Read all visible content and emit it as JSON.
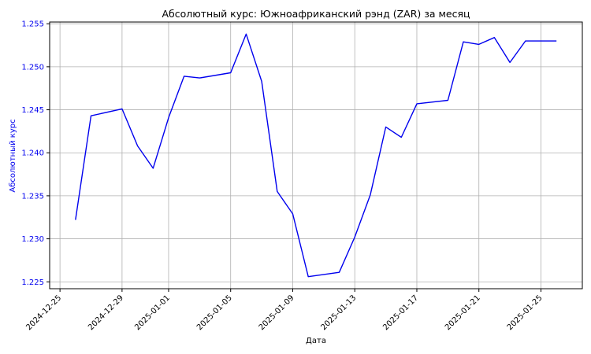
{
  "chart_data": {
    "type": "line",
    "title": "Абсолютный курс: Южноафриканский рэнд (ZAR) за месяц",
    "xlabel": "Дата",
    "ylabel": "Абсолютный курс",
    "x_tick_labels": [
      "2024-12-25",
      "2024-12-29",
      "2025-01-01",
      "2025-01-05",
      "2025-01-09",
      "2025-01-13",
      "2025-01-17",
      "2025-01-21",
      "2025-01-25"
    ],
    "y_tick_labels": [
      "1.225",
      "1.230",
      "1.235",
      "1.240",
      "1.245",
      "1.250",
      "1.255"
    ],
    "ylim": [
      1.2242,
      1.2552
    ],
    "xlim": [
      "2024-12-24T08:00",
      "2025-01-27T16:00"
    ],
    "grid": true,
    "series": [
      {
        "color": "#0000ee",
        "points": [
          {
            "x": "2024-12-26",
            "y": 1.2322
          },
          {
            "x": "2024-12-27",
            "y": 1.2443
          },
          {
            "x": "2024-12-29",
            "y": 1.2451
          },
          {
            "x": "2024-12-30",
            "y": 1.2408
          },
          {
            "x": "2024-12-31",
            "y": 1.2382
          },
          {
            "x": "2025-01-01",
            "y": 1.2441
          },
          {
            "x": "2025-01-02",
            "y": 1.2489
          },
          {
            "x": "2025-01-03",
            "y": 1.2487
          },
          {
            "x": "2025-01-05",
            "y": 1.2493
          },
          {
            "x": "2025-01-06",
            "y": 1.2538
          },
          {
            "x": "2025-01-07",
            "y": 1.2483
          },
          {
            "x": "2025-01-08",
            "y": 1.2355
          },
          {
            "x": "2025-01-09",
            "y": 1.2329
          },
          {
            "x": "2025-01-10",
            "y": 1.2256
          },
          {
            "x": "2025-01-12",
            "y": 1.2261
          },
          {
            "x": "2025-01-13",
            "y": 1.2302
          },
          {
            "x": "2025-01-14",
            "y": 1.2351
          },
          {
            "x": "2025-01-15",
            "y": 1.243
          },
          {
            "x": "2025-01-16",
            "y": 1.2418
          },
          {
            "x": "2025-01-17",
            "y": 1.2457
          },
          {
            "x": "2025-01-19",
            "y": 1.2461
          },
          {
            "x": "2025-01-20",
            "y": 1.2529
          },
          {
            "x": "2025-01-21",
            "y": 1.2526
          },
          {
            "x": "2025-01-22",
            "y": 1.2534
          },
          {
            "x": "2025-01-23",
            "y": 1.2505
          },
          {
            "x": "2025-01-24",
            "y": 1.253
          },
          {
            "x": "2025-01-26",
            "y": 1.253
          }
        ]
      }
    ]
  },
  "colors": {
    "line": "#0000ee",
    "ylabel": "#0000ee",
    "ytick_labels": "#0000ee",
    "grid": "#b0b0b0",
    "axes": "#000000"
  }
}
